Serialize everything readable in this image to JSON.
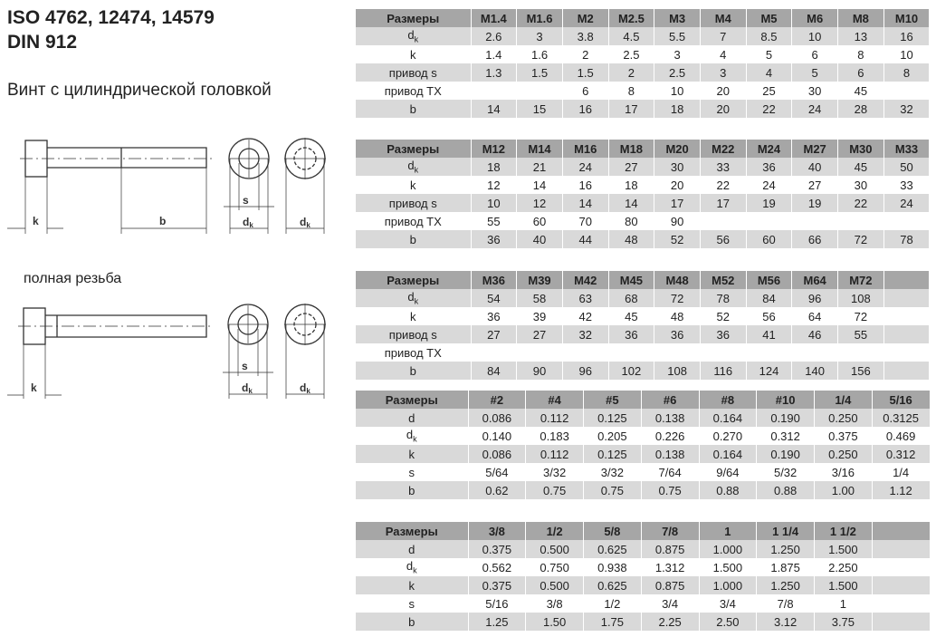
{
  "title_lines": [
    "ISO 4762, 12474, 14579",
    "DIN 912"
  ],
  "subtitle": "Винт с цилиндрической головкой",
  "full_thread_label": "полная резьба",
  "drawing_labels": {
    "k": "k",
    "b": "b",
    "s": "s",
    "dk_main": "d",
    "dk_sub": "k"
  },
  "tables": [
    {
      "header": [
        "Размеры",
        "M1.4",
        "M1.6",
        "M2",
        "M2.5",
        "M3",
        "M4",
        "M5",
        "M6",
        "M8",
        "M10"
      ],
      "rows": [
        {
          "label": "d",
          "sub": "k",
          "values": [
            "2.6",
            "3",
            "3.8",
            "4.5",
            "5.5",
            "7",
            "8.5",
            "10",
            "13",
            "16"
          ]
        },
        {
          "label": "k",
          "values": [
            "1.4",
            "1.6",
            "2",
            "2.5",
            "3",
            "4",
            "5",
            "6",
            "8",
            "10"
          ]
        },
        {
          "label": "привод s",
          "values": [
            "1.3",
            "1.5",
            "1.5",
            "2",
            "2.5",
            "3",
            "4",
            "5",
            "6",
            "8"
          ]
        },
        {
          "label": "привод TX",
          "values": [
            "",
            "",
            "6",
            "8",
            "10",
            "20",
            "25",
            "30",
            "45",
            ""
          ]
        },
        {
          "label": "b",
          "values": [
            "14",
            "15",
            "16",
            "17",
            "18",
            "20",
            "22",
            "24",
            "28",
            "32"
          ]
        }
      ]
    },
    {
      "header": [
        "Размеры",
        "M12",
        "M14",
        "M16",
        "M18",
        "M20",
        "M22",
        "M24",
        "M27",
        "M30",
        "M33"
      ],
      "rows": [
        {
          "label": "d",
          "sub": "k",
          "values": [
            "18",
            "21",
            "24",
            "27",
            "30",
            "33",
            "36",
            "40",
            "45",
            "50"
          ]
        },
        {
          "label": "k",
          "values": [
            "12",
            "14",
            "16",
            "18",
            "20",
            "22",
            "24",
            "27",
            "30",
            "33"
          ]
        },
        {
          "label": "привод s",
          "values": [
            "10",
            "12",
            "14",
            "14",
            "17",
            "17",
            "19",
            "19",
            "22",
            "24"
          ]
        },
        {
          "label": "привод TX",
          "values": [
            "55",
            "60",
            "70",
            "80",
            "90",
            "",
            "",
            "",
            "",
            ""
          ]
        },
        {
          "label": "b",
          "values": [
            "36",
            "40",
            "44",
            "48",
            "52",
            "56",
            "60",
            "66",
            "72",
            "78"
          ]
        }
      ]
    },
    {
      "header": [
        "Размеры",
        "M36",
        "M39",
        "M42",
        "M45",
        "M48",
        "M52",
        "M56",
        "M64",
        "M72",
        ""
      ],
      "rows": [
        {
          "label": "d",
          "sub": "k",
          "values": [
            "54",
            "58",
            "63",
            "68",
            "72",
            "78",
            "84",
            "96",
            "108",
            ""
          ]
        },
        {
          "label": "k",
          "values": [
            "36",
            "39",
            "42",
            "45",
            "48",
            "52",
            "56",
            "64",
            "72",
            ""
          ]
        },
        {
          "label": "привод s",
          "values": [
            "27",
            "27",
            "32",
            "36",
            "36",
            "36",
            "41",
            "46",
            "55",
            ""
          ]
        },
        {
          "label": "привод TX",
          "values": [
            "",
            "",
            "",
            "",
            "",
            "",
            "",
            "",
            "",
            ""
          ]
        },
        {
          "label": "b",
          "values": [
            "84",
            "90",
            "96",
            "102",
            "108",
            "116",
            "124",
            "140",
            "156",
            ""
          ]
        }
      ]
    },
    {
      "header": [
        "Размеры",
        "#2",
        "#4",
        "#5",
        "#6",
        "#8",
        "#10",
        "1/4",
        "5/16"
      ],
      "rows": [
        {
          "label": "d",
          "values": [
            "0.086",
            "0.112",
            "0.125",
            "0.138",
            "0.164",
            "0.190",
            "0.250",
            "0.3125"
          ]
        },
        {
          "label": "d",
          "sub": "k",
          "values": [
            "0.140",
            "0.183",
            "0.205",
            "0.226",
            "0.270",
            "0.312",
            "0.375",
            "0.469"
          ]
        },
        {
          "label": "k",
          "values": [
            "0.086",
            "0.112",
            "0.125",
            "0.138",
            "0.164",
            "0.190",
            "0.250",
            "0.312"
          ]
        },
        {
          "label": "s",
          "values": [
            "5/64",
            "3/32",
            "3/32",
            "7/64",
            "9/64",
            "5/32",
            "3/16",
            "1/4"
          ]
        },
        {
          "label": "b",
          "values": [
            "0.62",
            "0.75",
            "0.75",
            "0.75",
            "0.88",
            "0.88",
            "1.00",
            "1.12"
          ]
        }
      ]
    },
    {
      "header": [
        "Размеры",
        "3/8",
        "1/2",
        "5/8",
        "7/8",
        "1",
        "1 1/4",
        "1 1/2",
        ""
      ],
      "rows": [
        {
          "label": "d",
          "values": [
            "0.375",
            "0.500",
            "0.625",
            "0.875",
            "1.000",
            "1.250",
            "1.500",
            ""
          ]
        },
        {
          "label": "d",
          "sub": "k",
          "values": [
            "0.562",
            "0.750",
            "0.938",
            "1.312",
            "1.500",
            "1.875",
            "2.250",
            ""
          ]
        },
        {
          "label": "k",
          "values": [
            "0.375",
            "0.500",
            "0.625",
            "0.875",
            "1.000",
            "1.250",
            "1.500",
            ""
          ]
        },
        {
          "label": "s",
          "values": [
            "5/16",
            "3/8",
            "1/2",
            "3/4",
            "3/4",
            "7/8",
            "1",
            ""
          ]
        },
        {
          "label": "b",
          "values": [
            "1.25",
            "1.50",
            "1.75",
            "2.25",
            "2.50",
            "3.12",
            "3.75",
            ""
          ]
        }
      ]
    }
  ]
}
